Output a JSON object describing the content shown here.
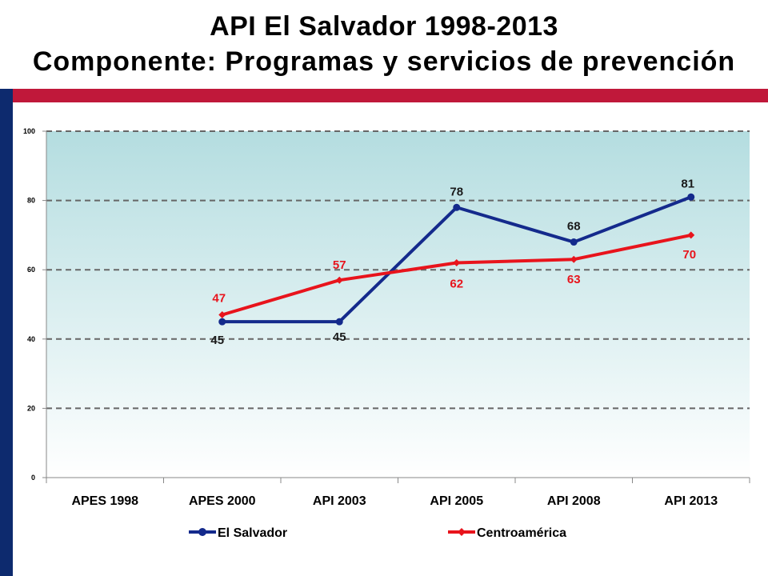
{
  "title": {
    "line1": "API El Salvador 1998-2013",
    "line2": "Componente: Programas y servicios de prevención"
  },
  "colors": {
    "header_band": "#c0183a",
    "side_bar": "#0d2a6e",
    "plot_top": "#b4dde0",
    "plot_bottom": "#ffffff",
    "gridline": "#666666"
  },
  "chart_data": {
    "type": "line",
    "categories": [
      "APES 1998",
      "APES 2000",
      "API 2003",
      "API 2005",
      "API 2008",
      "API 2013"
    ],
    "ylim": [
      0,
      100
    ],
    "yticks": [
      0,
      20,
      40,
      60,
      80,
      100
    ],
    "grid": true,
    "legend_position": "bottom",
    "series": [
      {
        "name": "El Salvador",
        "color": "#142a8c",
        "marker": "circle",
        "values": [
          null,
          45,
          45,
          78,
          68,
          81
        ],
        "labels": [
          "",
          "45",
          "45",
          "78",
          "68",
          "81"
        ],
        "label_color": "#1a1a1a"
      },
      {
        "name": "Centroamérica",
        "color": "#e8141c",
        "marker": "diamond",
        "values": [
          null,
          47,
          57,
          62,
          63,
          70
        ],
        "labels": [
          "",
          "47",
          "57",
          "62",
          "63",
          "70"
        ],
        "label_color": "#e8141c"
      }
    ]
  }
}
